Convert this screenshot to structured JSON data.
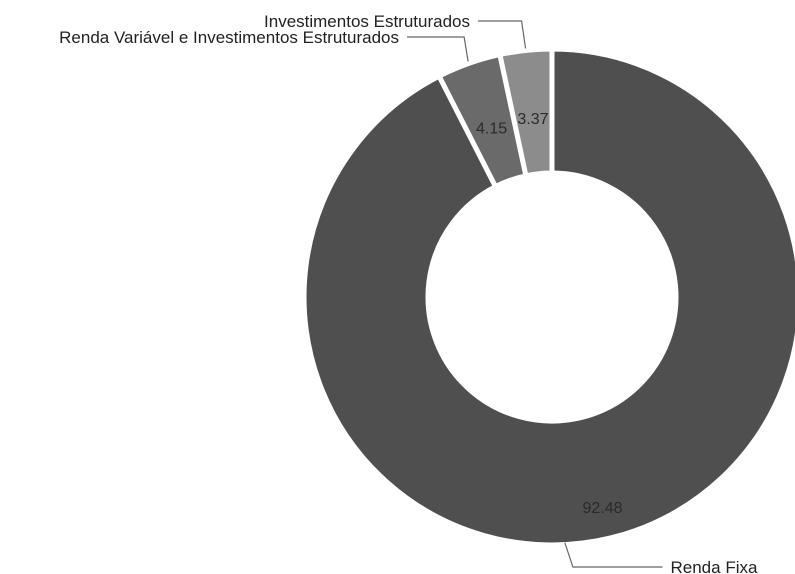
{
  "chart_data": {
    "type": "pie",
    "variant": "donut",
    "slices": [
      {
        "label": "Renda Fixa",
        "value": 92.48,
        "value_label": "92.48",
        "color": "#4f4f4f"
      },
      {
        "label": "Renda Variável e Investimentos Estruturados",
        "value": 4.15,
        "value_label": "4.15",
        "color": "#6a6a6a"
      },
      {
        "label": "Investimentos Estruturados",
        "value": 3.37,
        "value_label": "3.37",
        "color": "#8c8c8c"
      }
    ],
    "legend": "none",
    "start": "top",
    "direction": "clockwise"
  }
}
